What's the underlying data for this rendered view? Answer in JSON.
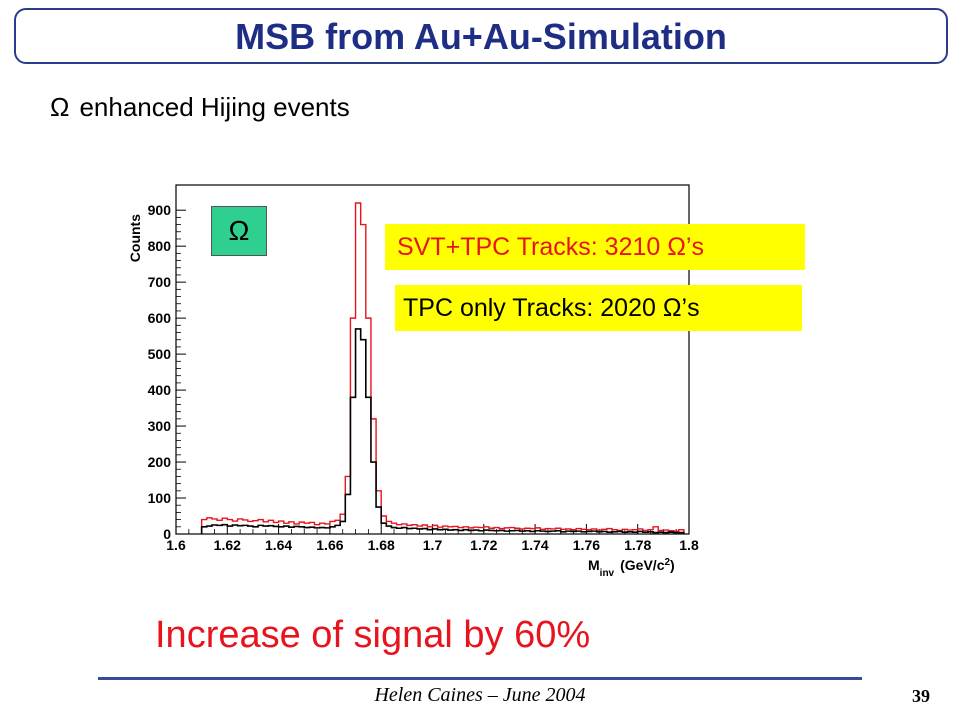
{
  "slide": {
    "title": "MSB from Au+Au-Simulation",
    "subtitle_symbol": "Ω",
    "subtitle_text": "enhanced Hijing events",
    "particle_label": "Ω",
    "legend_svt": "SVT+TPC Tracks: 3210 Ω’s",
    "legend_tpc": "TPC only Tracks: 2020 Ω’s",
    "headline": "Increase of signal by 60%",
    "footer": "Helen Caines – June 2004",
    "page_number": "39"
  },
  "colors": {
    "title": "#1f2e85",
    "svt_series": "#e8141d",
    "tpc_series": "#000000",
    "legend_bg": "#ffff00",
    "omega_box_bg": "#2fcf8f",
    "headline": "#e8141d"
  },
  "chart_data": {
    "type": "line",
    "style": "step-histogram",
    "xlabel": "M",
    "xlabel_sub": "inv",
    "xlabel_units": "(GeV/c",
    "xlabel_sup": "2",
    "xlabel_close": ")",
    "ylabel": "Counts",
    "xlim": [
      1.6,
      1.8
    ],
    "ylim": [
      0,
      970
    ],
    "x_ticks": [
      "1.6",
      "1.62",
      "1.64",
      "1.66",
      "1.68",
      "1.7",
      "1.72",
      "1.74",
      "1.76",
      "1.78",
      "1.8"
    ],
    "y_ticks": [
      "0",
      "100",
      "200",
      "300",
      "400",
      "500",
      "600",
      "700",
      "800",
      "900"
    ],
    "grid": false,
    "x": [
      1.611,
      1.613,
      1.615,
      1.617,
      1.619,
      1.621,
      1.623,
      1.625,
      1.627,
      1.629,
      1.631,
      1.633,
      1.635,
      1.637,
      1.639,
      1.641,
      1.643,
      1.645,
      1.647,
      1.649,
      1.651,
      1.653,
      1.655,
      1.657,
      1.659,
      1.661,
      1.663,
      1.665,
      1.667,
      1.669,
      1.671,
      1.673,
      1.675,
      1.677,
      1.679,
      1.681,
      1.683,
      1.685,
      1.687,
      1.689,
      1.691,
      1.693,
      1.695,
      1.697,
      1.699,
      1.701,
      1.703,
      1.705,
      1.707,
      1.709,
      1.711,
      1.713,
      1.715,
      1.717,
      1.719,
      1.721,
      1.723,
      1.725,
      1.727,
      1.729,
      1.731,
      1.733,
      1.735,
      1.737,
      1.739,
      1.741,
      1.743,
      1.745,
      1.747,
      1.749,
      1.751,
      1.753,
      1.755,
      1.757,
      1.759,
      1.761,
      1.763,
      1.765,
      1.767,
      1.769,
      1.771,
      1.773,
      1.775,
      1.777,
      1.779,
      1.781,
      1.783,
      1.785,
      1.787,
      1.789,
      1.791,
      1.793,
      1.795,
      1.797
    ],
    "series": [
      {
        "name": "SVT+TPC Tracks",
        "color": "#e8141d",
        "values": [
          40,
          45,
          42,
          38,
          44,
          40,
          36,
          42,
          39,
          35,
          37,
          40,
          34,
          38,
          32,
          36,
          30,
          34,
          28,
          33,
          30,
          32,
          26,
          30,
          28,
          35,
          38,
          55,
          160,
          600,
          920,
          860,
          600,
          320,
          120,
          50,
          35,
          30,
          26,
          28,
          24,
          26,
          22,
          25,
          20,
          24,
          19,
          22,
          20,
          21,
          18,
          20,
          17,
          19,
          18,
          20,
          16,
          18,
          15,
          17,
          18,
          16,
          14,
          16,
          15,
          17,
          13,
          15,
          14,
          16,
          13,
          14,
          12,
          15,
          13,
          12,
          14,
          11,
          13,
          15,
          12,
          10,
          13,
          11,
          12,
          14,
          10,
          12,
          20,
          10,
          11,
          9,
          8,
          12
        ]
      },
      {
        "name": "TPC only Tracks",
        "color": "#000000",
        "values": [
          20,
          22,
          25,
          24,
          26,
          22,
          25,
          23,
          24,
          22,
          20,
          24,
          22,
          23,
          21,
          20,
          22,
          19,
          21,
          20,
          18,
          19,
          17,
          18,
          17,
          20,
          24,
          35,
          110,
          380,
          570,
          540,
          380,
          200,
          75,
          30,
          22,
          18,
          16,
          18,
          15,
          16,
          14,
          15,
          12,
          14,
          12,
          13,
          11,
          12,
          10,
          12,
          10,
          11,
          9,
          11,
          10,
          9,
          10,
          8,
          9,
          10,
          8,
          9,
          7,
          9,
          8,
          7,
          8,
          9,
          6,
          8,
          7,
          8,
          6,
          7,
          8,
          6,
          7,
          5,
          6,
          7,
          5,
          6,
          5,
          7,
          5,
          6,
          4,
          5,
          4,
          5,
          4,
          4
        ]
      }
    ]
  }
}
